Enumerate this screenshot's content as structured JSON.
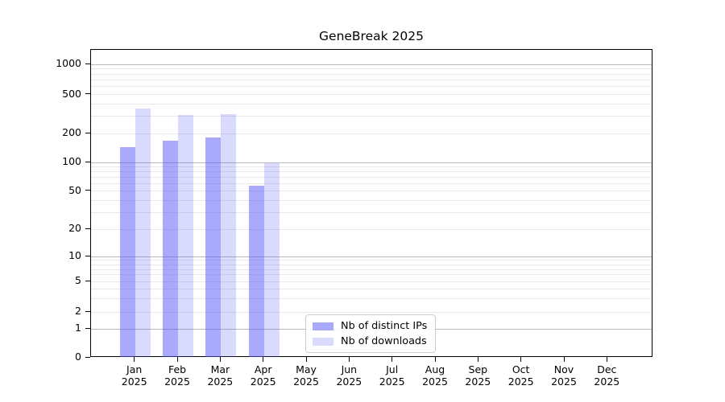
{
  "chart_data": {
    "type": "bar",
    "title": "GeneBreak 2025",
    "categories": [
      "Jan 2025",
      "Feb 2025",
      "Mar 2025",
      "Apr 2025",
      "May 2025",
      "Jun 2025",
      "Jul 2025",
      "Aug 2025",
      "Sep 2025",
      "Oct 2025",
      "Nov 2025",
      "Dec 2025"
    ],
    "months": [
      "Jan",
      "Feb",
      "Mar",
      "Apr",
      "May",
      "Jun",
      "Jul",
      "Aug",
      "Sep",
      "Oct",
      "Nov",
      "Dec"
    ],
    "year": "2025",
    "series": [
      {
        "name": "Nb of distinct IPs",
        "values": [
          145,
          168,
          181,
          57,
          null,
          null,
          null,
          null,
          null,
          null,
          null,
          null
        ]
      },
      {
        "name": "Nb of downloads",
        "values": [
          360,
          310,
          315,
          98,
          null,
          null,
          null,
          null,
          null,
          null,
          null,
          null
        ]
      }
    ],
    "xlabel": "",
    "ylabel": "",
    "yscale": "symlog",
    "ylim": [
      0,
      1400
    ],
    "y_ticks": [
      0,
      1,
      2,
      5,
      10,
      20,
      50,
      100,
      200,
      500,
      1000
    ],
    "grid": {
      "orientation": "horizontal",
      "major_at": [
        1,
        10,
        100,
        1000
      ],
      "minor_at": [
        2,
        3,
        4,
        5,
        6,
        7,
        8,
        9,
        20,
        30,
        40,
        50,
        60,
        70,
        80,
        90,
        200,
        300,
        400,
        500,
        600,
        700,
        800,
        900
      ]
    },
    "legend": {
      "position": "inside-bottom-center-right",
      "labels": [
        "Nb of distinct IPs",
        "Nb of downloads"
      ]
    },
    "colors": {
      "bar_base": "#5555fa",
      "bar_alphas": [
        0.5,
        0.22
      ],
      "grid_major": "#b9b9b9",
      "grid_minor": "#e8e8e8",
      "axis": "#000000"
    }
  }
}
